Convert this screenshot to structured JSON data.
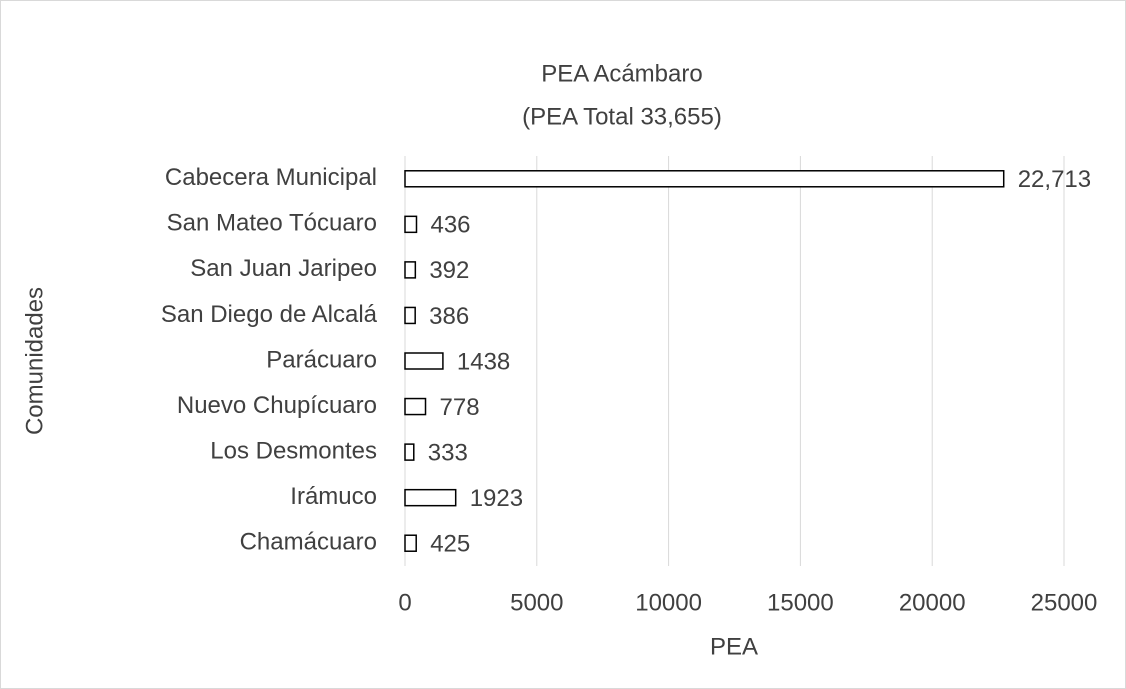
{
  "chart_data": {
    "type": "bar",
    "orientation": "horizontal",
    "title": "PEA Acámbaro",
    "subtitle": "(PEA Total 33,655)",
    "x_label": "PEA",
    "y_label": "Comunidades",
    "categories": [
      "Cabecera Municipal",
      "San Mateo Tócuaro",
      "San Juan Jaripeo",
      "San Diego de Alcalá",
      "Parácuaro",
      "Nuevo Chupícuaro",
      "Los Desmontes",
      "Irámuco",
      "Chamácuaro"
    ],
    "values": [
      22713,
      436,
      392,
      386,
      1438,
      778,
      333,
      1923,
      425
    ],
    "value_labels": [
      "22,713",
      "436",
      "392",
      "386",
      "1438",
      "778",
      "333",
      "1923",
      "425"
    ],
    "color": "#ffffff",
    "edge_color": "#000000",
    "xlim": [
      0,
      25000
    ],
    "xticks": [
      0,
      5000,
      10000,
      15000,
      20000,
      25000
    ],
    "grid": true
  }
}
